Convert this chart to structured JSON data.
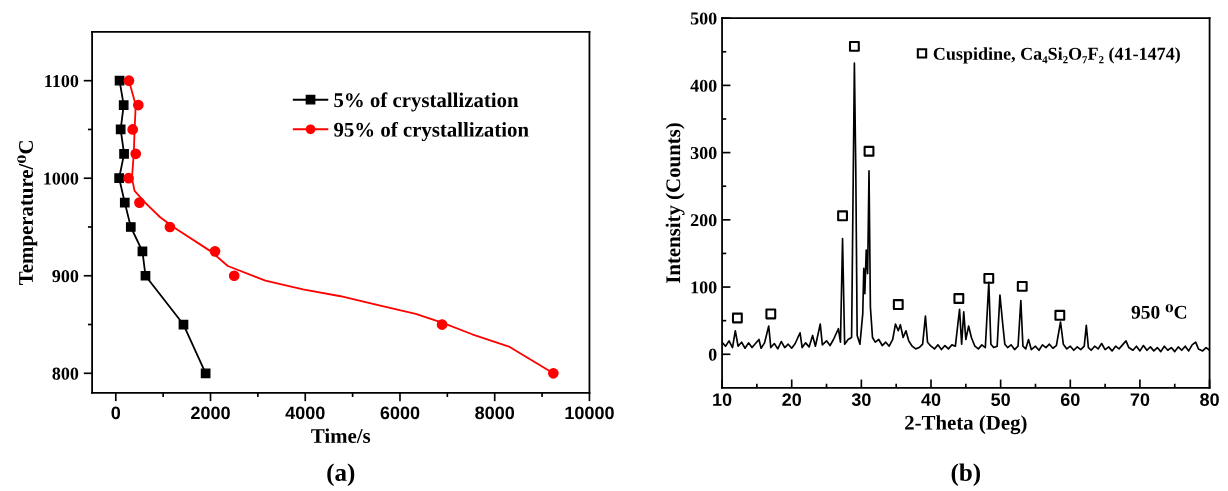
{
  "chart_data": [
    {
      "type": "line",
      "xlabel": "Time/s",
      "ylabel": "Temperature/⁰C",
      "xlim": [
        -500,
        10000
      ],
      "ylim": [
        780,
        1150
      ],
      "xticks": [
        0,
        2000,
        4000,
        6000,
        8000,
        10000
      ],
      "yticks": [
        800,
        900,
        1000,
        1100
      ],
      "grid": false,
      "legend": "top right",
      "annotations": [
        "(a)"
      ],
      "series": [
        {
          "name": "5% of crystallization",
          "color": "#000000",
          "marker": "square",
          "line_style": "solid",
          "x": [
            80,
            167,
            103,
            175,
            71,
            190,
            317,
            563,
            627,
            1429,
            1897
          ],
          "values": [
            1100,
            1075,
            1050,
            1025,
            1000,
            975,
            950,
            925,
            900,
            850,
            800
          ]
        },
        {
          "name": "95% of crystallization",
          "type": "scatter",
          "color": "#ff0000",
          "marker": "circle",
          "x": [
            278,
            476,
            357,
            421,
            270,
            500,
            1143,
            2095,
            2500,
            6889,
            9238
          ],
          "values": [
            1100,
            1075,
            1050,
            1025,
            1000,
            975,
            950,
            925,
            900,
            850,
            800
          ]
        },
        {
          "color": "#ff0000",
          "line_style": "solid",
          "x": [
            278,
            421,
            397,
            381,
            341,
            397,
            619,
            937,
            1214,
            2008,
            2365,
            3159,
            3952,
            4746,
            5540,
            6333,
            6889,
            7524,
            8317,
            9238
          ],
          "values": [
            1100,
            1075,
            1050,
            1026,
            1000,
            987,
            975,
            960,
            950,
            925,
            910,
            895,
            886,
            879,
            870,
            861,
            852,
            840,
            827,
            800
          ]
        }
      ]
    },
    {
      "type": "line",
      "xlabel": "2-Theta (Deg)",
      "ylabel": "Intensity (Counts)",
      "xlim": [
        10,
        80
      ],
      "ylim": [
        -50,
        500
      ],
      "xticks": [
        10,
        20,
        30,
        40,
        50,
        60,
        70,
        80
      ],
      "yticks": [
        0,
        100,
        200,
        300,
        400,
        500
      ],
      "grid": false,
      "legend": "top right",
      "annotations": [
        "950 ⁰C",
        "(b)"
      ],
      "series": [
        {
          "color": "#000000",
          "line_style": "solid",
          "x": [
            10,
            10.5,
            11,
            11.5,
            11.9,
            12.3,
            12.8,
            13.3,
            13.8,
            14.3,
            14.8,
            15.3,
            15.6,
            16.1,
            16.7,
            17.0,
            17.5,
            18.0,
            18.5,
            19.0,
            19.5,
            20.0,
            20.5,
            21.2,
            21.5,
            22.0,
            22.5,
            23.0,
            23.4,
            24.1,
            24.4,
            25.0,
            25.5,
            26.0,
            26.7,
            27.0,
            27.3,
            27.6,
            28.1,
            28.6,
            29.0,
            29.2,
            29.4,
            29.8,
            30.2,
            30.35,
            30.5,
            30.7,
            30.9,
            31.1,
            31.3,
            31.6,
            32.0,
            32.5,
            33.0,
            33.5,
            34.0,
            34.5,
            34.9,
            35.3,
            35.6,
            36.0,
            36.4,
            36.8,
            37.3,
            37.8,
            38.3,
            38.8,
            39.2,
            39.5,
            40.0,
            40.5,
            41.0,
            41.5,
            42.0,
            42.5,
            43.0,
            43.5,
            44.1,
            44.4,
            44.7,
            45.0,
            45.4,
            45.8,
            46.3,
            46.8,
            47.3,
            47.8,
            48.3,
            48.6,
            49.0,
            49.5,
            49.9,
            50.3,
            50.6,
            51.0,
            51.5,
            52.0,
            52.5,
            52.9,
            53.2,
            53.6,
            54.0,
            54.4,
            55.0,
            55.5,
            56.0,
            56.5,
            57.0,
            57.5,
            58.0,
            58.6,
            59.0,
            59.5,
            60.0,
            60.5,
            61.0,
            61.5,
            62.0,
            62.3,
            62.6,
            63.0,
            63.5,
            64.0,
            64.5,
            65.0,
            65.5,
            66.0,
            66.5,
            67.0,
            67.5,
            68.0,
            68.4,
            69.0,
            69.5,
            70.0,
            70.5,
            71.0,
            71.5,
            72.0,
            72.5,
            73.0,
            73.5,
            74.0,
            74.5,
            75.0,
            75.5,
            76.0,
            76.5,
            77.0,
            77.5,
            78.0,
            78.4,
            79.0,
            79.5,
            80.0
          ],
          "values": [
            18,
            12,
            20,
            10,
            35,
            12,
            18,
            9,
            17,
            10,
            16,
            22,
            9,
            17,
            42,
            10,
            16,
            8,
            19,
            10,
            15,
            9,
            16,
            32,
            10,
            17,
            11,
            28,
            12,
            45,
            14,
            20,
            13,
            22,
            38,
            18,
            172,
            15,
            22,
            25,
            433,
            275,
            28,
            15,
            60,
            128,
            90,
            155,
            120,
            273,
            70,
            25,
            18,
            22,
            13,
            18,
            12,
            22,
            45,
            35,
            44,
            25,
            35,
            20,
            12,
            8,
            10,
            15,
            57,
            18,
            12,
            8,
            14,
            7,
            13,
            8,
            14,
            12,
            67,
            15,
            63,
            22,
            42,
            25,
            12,
            8,
            14,
            10,
            107,
            15,
            10,
            12,
            88,
            45,
            15,
            10,
            14,
            7,
            12,
            80,
            12,
            8,
            22,
            7,
            12,
            6,
            14,
            10,
            15,
            9,
            13,
            48,
            15,
            8,
            12,
            6,
            11,
            7,
            12,
            43,
            10,
            6,
            12,
            8,
            16,
            7,
            11,
            5,
            12,
            8,
            14,
            20,
            10,
            6,
            12,
            5,
            13,
            6,
            11,
            5,
            10,
            4,
            12,
            6,
            10,
            4,
            11,
            6,
            12,
            5,
            14,
            18,
            8,
            5,
            10,
            6
          ]
        },
        {
          "name": "Cuspidine, Ca₄Si₂O₇F₂ (41-1474)",
          "type": "scatter",
          "color": "#000000",
          "marker": "square",
          "x": [
            12.2,
            17.0,
            27.3,
            29.0,
            31.1,
            35.3,
            44.0,
            48.3,
            53.1,
            58.5
          ],
          "values": [
            54,
            60,
            206,
            458,
            302,
            74,
            83,
            113,
            101,
            58
          ]
        }
      ]
    }
  ]
}
